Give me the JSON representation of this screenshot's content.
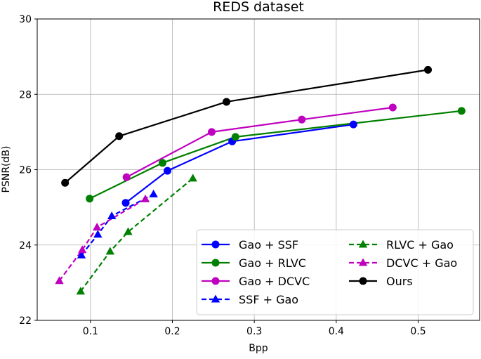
{
  "chart_data": {
    "type": "line",
    "title": "REDS dataset",
    "xlabel": "Bpp",
    "ylabel": "PSNR(dB)",
    "xlim": [
      0.035,
      0.575
    ],
    "ylim": [
      22,
      30
    ],
    "xticks": [
      0.1,
      0.2,
      0.3,
      0.4,
      0.5
    ],
    "xtick_labels": [
      "0.1",
      "0.2",
      "0.3",
      "0.4",
      "0.5"
    ],
    "yticks": [
      22,
      24,
      26,
      28,
      30
    ],
    "ytick_labels": [
      "22",
      "24",
      "26",
      "28",
      "30"
    ],
    "grid": true,
    "legend_position": "lower-right",
    "series": [
      {
        "name": "Gao + SSF",
        "color": "#0000ff",
        "marker": "circle",
        "linestyle": "solid",
        "x": [
          0.143,
          0.194,
          0.273,
          0.421
        ],
        "y": [
          25.12,
          25.97,
          26.75,
          27.2
        ]
      },
      {
        "name": "Gao + RLVC",
        "color": "#008000",
        "marker": "circle",
        "linestyle": "solid",
        "x": [
          0.099,
          0.188,
          0.277,
          0.553
        ],
        "y": [
          25.23,
          26.18,
          26.87,
          27.56
        ]
      },
      {
        "name": "Gao + DCVC",
        "color": "#bf00bf",
        "marker": "circle",
        "linestyle": "solid",
        "x": [
          0.144,
          0.248,
          0.358,
          0.469
        ],
        "y": [
          25.8,
          27.0,
          27.33,
          27.65
        ]
      },
      {
        "name": "SSF + Gao",
        "color": "#0000ff",
        "marker": "triangle",
        "linestyle": "dashed",
        "x": [
          0.089,
          0.109,
          0.126,
          0.177
        ],
        "y": [
          23.73,
          24.28,
          24.77,
          25.35
        ]
      },
      {
        "name": "RLVC + Gao",
        "color": "#008000",
        "marker": "triangle",
        "linestyle": "dashed",
        "x": [
          0.088,
          0.124,
          0.146,
          0.225
        ],
        "y": [
          22.77,
          23.83,
          24.35,
          25.77
        ]
      },
      {
        "name": "DCVC + Gao",
        "color": "#bf00bf",
        "marker": "triangle",
        "linestyle": "dashed",
        "x": [
          0.062,
          0.09,
          0.108,
          0.167
        ],
        "y": [
          23.05,
          23.87,
          24.47,
          25.22
        ]
      },
      {
        "name": "Ours",
        "color": "#000000",
        "marker": "circle",
        "linestyle": "solid",
        "x": [
          0.069,
          0.135,
          0.266,
          0.512
        ],
        "y": [
          25.65,
          26.89,
          27.8,
          28.65
        ]
      }
    ],
    "legend_columns": [
      [
        "Gao + SSF",
        "Gao + RLVC",
        "Gao + DCVC",
        "SSF + Gao"
      ],
      [
        "RLVC + Gao",
        "DCVC + Gao",
        "Ours"
      ]
    ]
  }
}
